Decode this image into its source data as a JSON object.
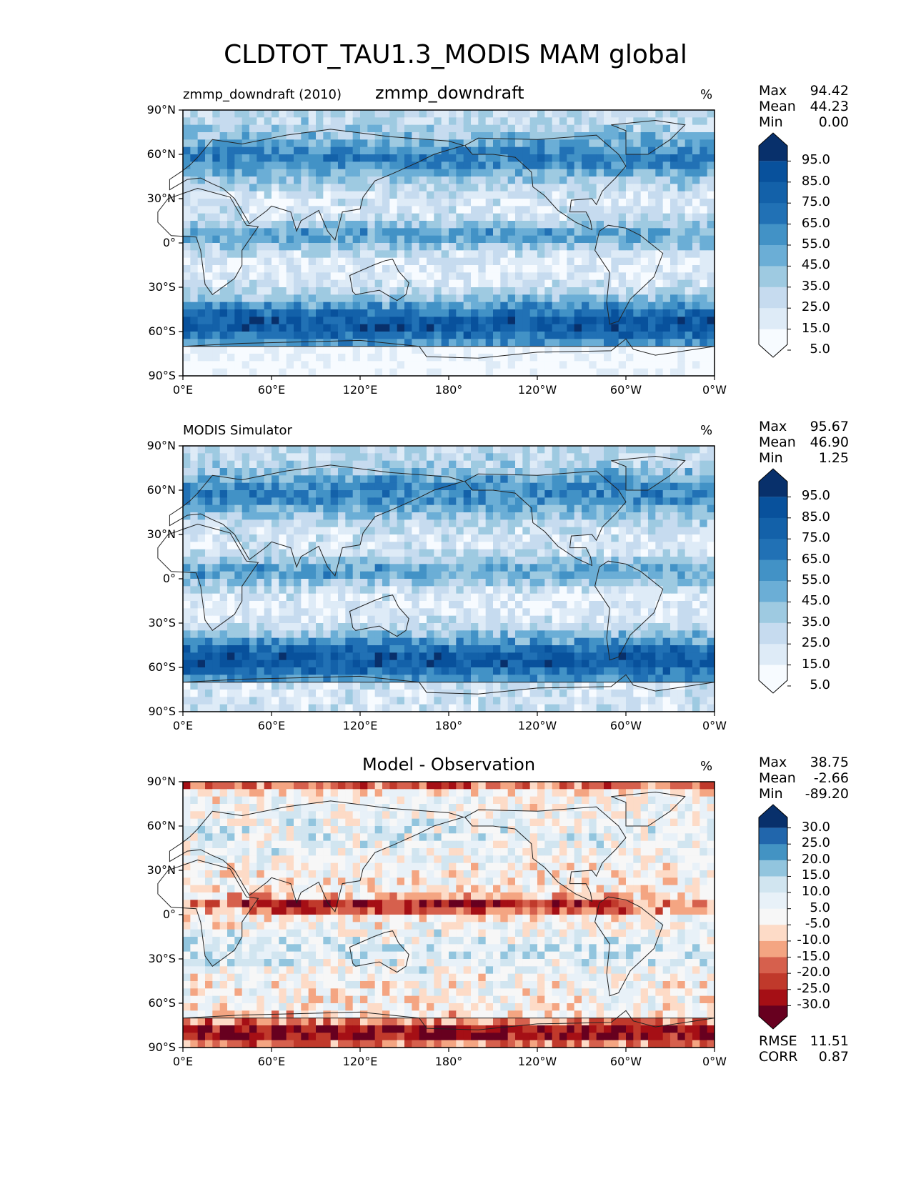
{
  "figure": {
    "title": "CLDTOT_TAU1.3_MODIS MAM global"
  },
  "lat_ticks": [
    "90°N",
    "60°N",
    "30°N",
    "0°",
    "30°S",
    "60°S",
    "90°S"
  ],
  "lon_ticks": [
    "0°E",
    "60°E",
    "120°E",
    "180°",
    "120°W",
    "60°W",
    "0°W"
  ],
  "panels": [
    {
      "left_label": "zmmp_downdraft (2010)",
      "center_title": "zmmp_downdraft",
      "units": "%",
      "stats": [
        {
          "name": "Max",
          "value": "94.42"
        },
        {
          "name": "Mean",
          "value": "44.23"
        },
        {
          "name": "Min",
          "value": "0.00"
        }
      ],
      "colorbar_ticks": [
        "95.0",
        "85.0",
        "75.0",
        "65.0",
        "55.0",
        "45.0",
        "35.0",
        "25.0",
        "15.0",
        "5.0"
      ]
    },
    {
      "left_label": "MODIS Simulator",
      "center_title": "",
      "units": "%",
      "stats": [
        {
          "name": "Max",
          "value": "95.67"
        },
        {
          "name": "Mean",
          "value": "46.90"
        },
        {
          "name": "Min",
          "value": "1.25"
        }
      ],
      "colorbar_ticks": [
        "95.0",
        "85.0",
        "75.0",
        "65.0",
        "55.0",
        "45.0",
        "35.0",
        "25.0",
        "15.0",
        "5.0"
      ]
    },
    {
      "left_label": "",
      "center_title": "Model - Observation",
      "units": "%",
      "stats": [
        {
          "name": "Max",
          "value": "38.75"
        },
        {
          "name": "Mean",
          "value": "-2.66"
        },
        {
          "name": "Min",
          "value": "-89.20"
        }
      ],
      "colorbar_ticks": [
        "30.0",
        "25.0",
        "20.0",
        "15.0",
        "10.0",
        "5.0",
        "-5.0",
        "-10.0",
        "-15.0",
        "-20.0",
        "-25.0",
        "-30.0"
      ],
      "metrics": [
        {
          "name": "RMSE",
          "value": "11.51"
        },
        {
          "name": "CORR",
          "value": "0.87"
        }
      ]
    }
  ],
  "colors": {
    "blues": [
      "#f7fbff",
      "#deebf7",
      "#c6dbef",
      "#9ecae1",
      "#6baed6",
      "#4292c6",
      "#2171b5",
      "#1361a9",
      "#08519c",
      "#08306b"
    ],
    "rdbu": [
      "#67001f",
      "#a50f15",
      "#c0392b",
      "#d6604d",
      "#f4a582",
      "#fddbc7",
      "#f7f7f7",
      "#e8f1f8",
      "#d1e5f0",
      "#92c5de",
      "#4393c3",
      "#2166ac",
      "#08306b"
    ]
  }
}
